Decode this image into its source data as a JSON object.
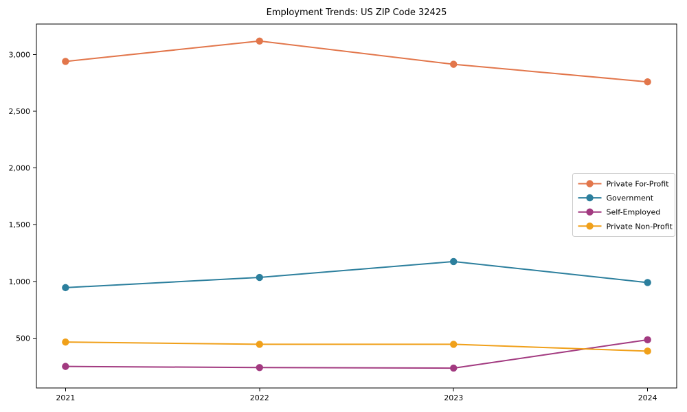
{
  "chart_data": {
    "type": "line",
    "title": "Employment Trends: US ZIP Code 32425",
    "x": [
      2021,
      2022,
      2023,
      2024
    ],
    "x_tick_labels": [
      "2021",
      "2022",
      "2023",
      "2024"
    ],
    "y_ticks": [
      500,
      1000,
      1500,
      2000,
      2500,
      3000
    ],
    "y_tick_labels": [
      "500",
      "1,000",
      "1,500",
      "2,000",
      "2,500",
      "3,000"
    ],
    "xlim": [
      2020.85,
      2024.15
    ],
    "ylim": [
      60,
      3270
    ],
    "grid": false,
    "legend_position": "center-right",
    "marker": "circle",
    "line_width": 2,
    "axis_color": "#000000",
    "legend_border_color": "#cccccc",
    "series": [
      {
        "name": "Private For-Profit",
        "color": "#e2764b",
        "values": [
          2940,
          3120,
          2915,
          2760
        ]
      },
      {
        "name": "Government",
        "color": "#2c7f9d",
        "values": [
          945,
          1035,
          1175,
          990
        ]
      },
      {
        "name": "Self-Employed",
        "color": "#a23a80",
        "values": [
          250,
          240,
          235,
          485
        ]
      },
      {
        "name": "Private Non-Profit",
        "color": "#f0a01a",
        "values": [
          465,
          445,
          445,
          385
        ]
      }
    ]
  }
}
